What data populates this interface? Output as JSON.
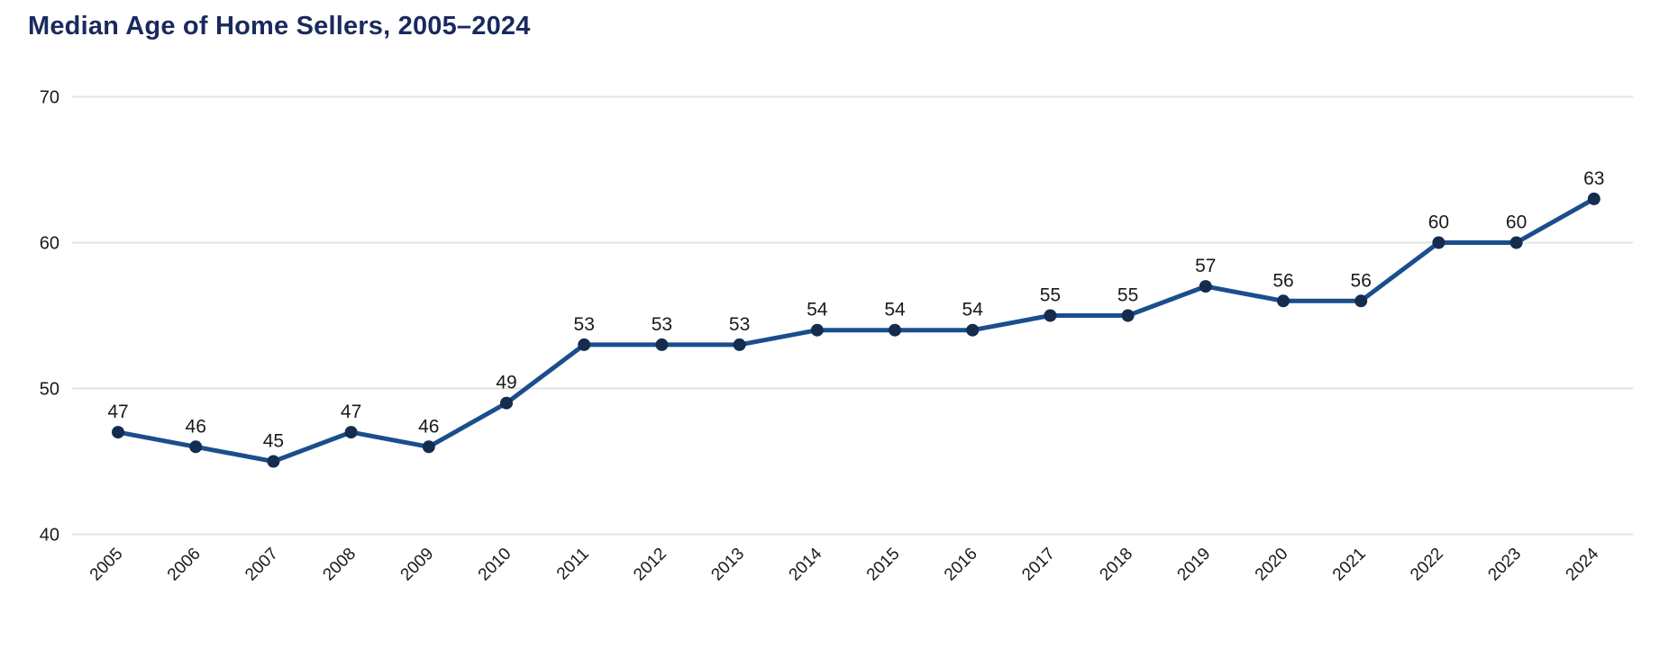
{
  "page": {
    "background_color": "#ffffff"
  },
  "chart_data": {
    "type": "line",
    "title": "Median Age of Home Sellers, 2005–2024",
    "xlabel": "",
    "ylabel": "",
    "categories": [
      "2005",
      "2006",
      "2007",
      "2008",
      "2009",
      "2010",
      "2011",
      "2012",
      "2013",
      "2014",
      "2015",
      "2016",
      "2017",
      "2018",
      "2019",
      "2020",
      "2021",
      "2022",
      "2023",
      "2024"
    ],
    "values": [
      47,
      46,
      45,
      47,
      46,
      49,
      53,
      53,
      53,
      54,
      54,
      54,
      55,
      55,
      57,
      56,
      56,
      60,
      60,
      63
    ],
    "ylim": [
      40,
      70
    ],
    "yticks": [
      40,
      50,
      60,
      70
    ],
    "grid": true,
    "legend": false,
    "data_labels": true,
    "colors": {
      "title": "#1a2a5e",
      "line": "#1a4e8c",
      "marker": "#142c4e",
      "gridline": "#e3e3e3",
      "axis_label": "#1a1a1a",
      "data_label": "#1a1a1a"
    }
  }
}
